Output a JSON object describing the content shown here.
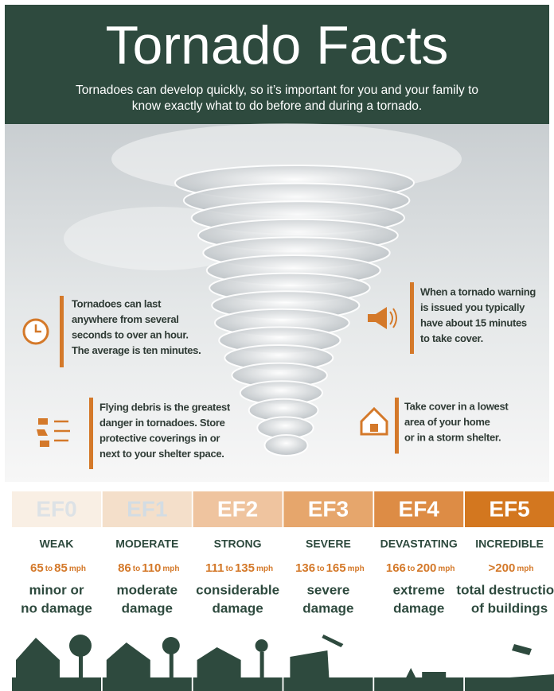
{
  "header": {
    "title": "Tornado Facts",
    "subtitle": [
      "Tornadoes can develop quickly, so it’s important for you and your family to",
      "know exactly what to do before and during a tornado."
    ]
  },
  "facts": [
    {
      "lines": [
        "Tornadoes can last",
        "anywhere from several",
        "seconds to over an hour.",
        "The average is ten minutes."
      ]
    },
    {
      "lines": [
        "When a tornado warning",
        "is issued you typically",
        "have about 15 minutes",
        "to take cover."
      ]
    },
    {
      "lines": [
        "Flying debris is the greatest",
        "danger in tornadoes. Store",
        "protective coverings in or",
        "next to your shelter space."
      ]
    },
    {
      "lines": [
        "Take cover in a lowest",
        "area of your home",
        "or in a storm shelter."
      ]
    }
  ],
  "scale": {
    "speed_connector": "to",
    "speed_unit": "mph",
    "levels": [
      {
        "level": "EF0",
        "label": "WEAK",
        "speed_from": "65",
        "speed_to": "85",
        "damage": [
          "minor or",
          "no damage"
        ]
      },
      {
        "level": "EF1",
        "label": "MODERATE",
        "speed_from": "86",
        "speed_to": "110",
        "damage": [
          "moderate",
          "damage"
        ]
      },
      {
        "level": "EF2",
        "label": "STRONG",
        "speed_from": "111",
        "speed_to": "135",
        "damage": [
          "considerable",
          "damage"
        ]
      },
      {
        "level": "EF3",
        "label": "SEVERE",
        "speed_from": "136",
        "speed_to": "165",
        "damage": [
          "severe",
          "damage"
        ]
      },
      {
        "level": "EF4",
        "label": "DEVASTATING",
        "speed_from": "166",
        "speed_to": "200",
        "damage": [
          "extreme",
          "damage"
        ]
      },
      {
        "level": "EF5",
        "label": "INCREDIBLE",
        "speed_from": ">200",
        "damage": [
          "total destruction",
          "of buildings"
        ]
      }
    ]
  }
}
